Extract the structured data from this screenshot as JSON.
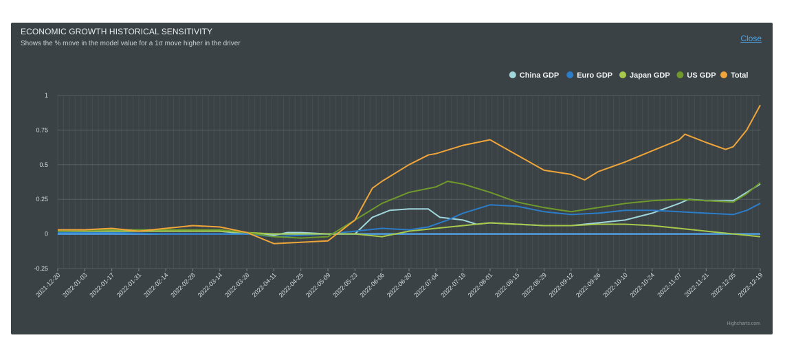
{
  "header": {
    "title": "ECONOMIC GROWTH HISTORICAL SENSITIVITY",
    "subtitle": "Shows the % move in the model value for a 1σ move higher in the driver",
    "close_label": "Close"
  },
  "credit": "Highcharts.com",
  "colors": {
    "panel_bg": "#3b4245",
    "grid": "#4a5357",
    "china": "#9fd6dc",
    "euro": "#2b7cc9",
    "japan": "#a7c94b",
    "us": "#6f9a2b",
    "total": "#f0a53a"
  },
  "chart_data": {
    "type": "line",
    "title": "ECONOMIC GROWTH HISTORICAL SENSITIVITY",
    "subtitle": "Shows the % move in the model value for a 1σ move higher in the driver",
    "xlabel": "",
    "ylabel": "",
    "ylim": [
      -0.25,
      1
    ],
    "yticks": [
      -0.25,
      0,
      0.25,
      0.5,
      0.75,
      1
    ],
    "ytick_labels": [
      "-0.25",
      "0",
      "0.25",
      "0.5",
      "0.75",
      "1"
    ],
    "x_start": "2021-12-20",
    "x_end": "2022-12-19",
    "x_tick_labels": [
      "2021-12-20",
      "2022-01-03",
      "2022-01-17",
      "2022-01-31",
      "2022-02-14",
      "2022-02-28",
      "2022-03-14",
      "2022-03-28",
      "2022-04-11",
      "2022-04-25",
      "2022-05-09",
      "2022-05-23",
      "2022-06-06",
      "2022-06-20",
      "2022-07-04",
      "2022-07-18",
      "2022-08-01",
      "2022-08-15",
      "2022-08-29",
      "2022-09-12",
      "2022-09-26",
      "2022-10-10",
      "2022-10-24",
      "2022-11-07",
      "2022-11-21",
      "2022-12-05",
      "2022-12-19"
    ],
    "grid": true,
    "legend_position": "top-right",
    "series": [
      {
        "name": "China GDP",
        "color": "#9fd6dc",
        "points": [
          [
            "2021-12-20",
            0.02
          ],
          [
            "2022-01-17",
            0.02
          ],
          [
            "2022-02-14",
            0.02
          ],
          [
            "2022-03-14",
            0.02
          ],
          [
            "2022-03-28",
            0.0
          ],
          [
            "2022-04-11",
            -0.01
          ],
          [
            "2022-04-18",
            0.01
          ],
          [
            "2022-04-25",
            0.01
          ],
          [
            "2022-05-09",
            0.0
          ],
          [
            "2022-05-23",
            0.0
          ],
          [
            "2022-06-01",
            0.12
          ],
          [
            "2022-06-10",
            0.17
          ],
          [
            "2022-06-20",
            0.18
          ],
          [
            "2022-06-30",
            0.18
          ],
          [
            "2022-07-06",
            0.12
          ],
          [
            "2022-07-18",
            0.1
          ],
          [
            "2022-07-25",
            0.07
          ],
          [
            "2022-08-01",
            0.08
          ],
          [
            "2022-08-15",
            0.07
          ],
          [
            "2022-08-29",
            0.06
          ],
          [
            "2022-09-12",
            0.06
          ],
          [
            "2022-09-26",
            0.08
          ],
          [
            "2022-10-10",
            0.1
          ],
          [
            "2022-10-24",
            0.15
          ],
          [
            "2022-11-07",
            0.22
          ],
          [
            "2022-11-12",
            0.25
          ],
          [
            "2022-11-21",
            0.24
          ],
          [
            "2022-12-05",
            0.24
          ],
          [
            "2022-12-12",
            0.3
          ],
          [
            "2022-12-19",
            0.36
          ]
        ]
      },
      {
        "name": "Euro GDP",
        "color": "#2b7cc9",
        "points": [
          [
            "2021-12-20",
            0.01
          ],
          [
            "2022-01-17",
            0.01
          ],
          [
            "2022-02-14",
            0.0
          ],
          [
            "2022-03-14",
            0.0
          ],
          [
            "2022-03-28",
            0.0
          ],
          [
            "2022-04-11",
            -0.02
          ],
          [
            "2022-04-25",
            -0.01
          ],
          [
            "2022-05-09",
            0.0
          ],
          [
            "2022-05-23",
            0.02
          ],
          [
            "2022-06-06",
            0.04
          ],
          [
            "2022-06-20",
            0.03
          ],
          [
            "2022-06-30",
            0.05
          ],
          [
            "2022-07-10",
            0.1
          ],
          [
            "2022-07-18",
            0.15
          ],
          [
            "2022-08-01",
            0.21
          ],
          [
            "2022-08-15",
            0.2
          ],
          [
            "2022-08-29",
            0.16
          ],
          [
            "2022-09-12",
            0.14
          ],
          [
            "2022-09-26",
            0.15
          ],
          [
            "2022-10-10",
            0.17
          ],
          [
            "2022-10-24",
            0.17
          ],
          [
            "2022-11-07",
            0.16
          ],
          [
            "2022-11-21",
            0.15
          ],
          [
            "2022-12-05",
            0.14
          ],
          [
            "2022-12-12",
            0.17
          ],
          [
            "2022-12-19",
            0.22
          ]
        ]
      },
      {
        "name": "Japan GDP",
        "color": "#a7c94b",
        "points": [
          [
            "2021-12-20",
            0.02
          ],
          [
            "2022-01-17",
            0.02
          ],
          [
            "2022-02-14",
            0.02
          ],
          [
            "2022-03-14",
            0.02
          ],
          [
            "2022-03-28",
            0.01
          ],
          [
            "2022-04-11",
            0.0
          ],
          [
            "2022-04-25",
            0.0
          ],
          [
            "2022-05-09",
            0.0
          ],
          [
            "2022-05-23",
            0.0
          ],
          [
            "2022-06-06",
            -0.02
          ],
          [
            "2022-06-20",
            0.02
          ],
          [
            "2022-07-04",
            0.04
          ],
          [
            "2022-07-18",
            0.06
          ],
          [
            "2022-08-01",
            0.08
          ],
          [
            "2022-08-15",
            0.07
          ],
          [
            "2022-08-29",
            0.06
          ],
          [
            "2022-09-12",
            0.06
          ],
          [
            "2022-09-26",
            0.07
          ],
          [
            "2022-10-10",
            0.07
          ],
          [
            "2022-10-24",
            0.06
          ],
          [
            "2022-11-07",
            0.04
          ],
          [
            "2022-11-21",
            0.02
          ],
          [
            "2022-12-05",
            0.0
          ],
          [
            "2022-12-19",
            -0.02
          ]
        ]
      },
      {
        "name": "US GDP",
        "color": "#6f9a2b",
        "points": [
          [
            "2021-12-20",
            0.02
          ],
          [
            "2022-01-17",
            0.03
          ],
          [
            "2022-02-14",
            0.03
          ],
          [
            "2022-03-14",
            0.03
          ],
          [
            "2022-03-28",
            0.01
          ],
          [
            "2022-04-11",
            -0.02
          ],
          [
            "2022-04-25",
            -0.03
          ],
          [
            "2022-05-09",
            -0.02
          ],
          [
            "2022-05-23",
            0.1
          ],
          [
            "2022-06-06",
            0.22
          ],
          [
            "2022-06-20",
            0.3
          ],
          [
            "2022-07-04",
            0.34
          ],
          [
            "2022-07-10",
            0.38
          ],
          [
            "2022-07-18",
            0.36
          ],
          [
            "2022-08-01",
            0.3
          ],
          [
            "2022-08-15",
            0.23
          ],
          [
            "2022-08-29",
            0.19
          ],
          [
            "2022-09-12",
            0.16
          ],
          [
            "2022-09-26",
            0.19
          ],
          [
            "2022-10-10",
            0.22
          ],
          [
            "2022-10-24",
            0.24
          ],
          [
            "2022-11-07",
            0.25
          ],
          [
            "2022-11-21",
            0.24
          ],
          [
            "2022-12-05",
            0.23
          ],
          [
            "2022-12-12",
            0.29
          ],
          [
            "2022-12-19",
            0.37
          ]
        ]
      },
      {
        "name": "Total",
        "color": "#f0a53a",
        "points": [
          [
            "2021-12-20",
            0.03
          ],
          [
            "2022-01-03",
            0.03
          ],
          [
            "2022-01-17",
            0.04
          ],
          [
            "2022-01-31",
            0.02
          ],
          [
            "2022-02-14",
            0.04
          ],
          [
            "2022-02-28",
            0.06
          ],
          [
            "2022-03-14",
            0.05
          ],
          [
            "2022-03-28",
            0.01
          ],
          [
            "2022-04-11",
            -0.07
          ],
          [
            "2022-04-25",
            -0.06
          ],
          [
            "2022-05-09",
            -0.05
          ],
          [
            "2022-05-23",
            0.1
          ],
          [
            "2022-06-01",
            0.33
          ],
          [
            "2022-06-06",
            0.38
          ],
          [
            "2022-06-20",
            0.5
          ],
          [
            "2022-06-30",
            0.57
          ],
          [
            "2022-07-04",
            0.58
          ],
          [
            "2022-07-18",
            0.64
          ],
          [
            "2022-08-01",
            0.68
          ],
          [
            "2022-08-15",
            0.57
          ],
          [
            "2022-08-29",
            0.46
          ],
          [
            "2022-09-12",
            0.43
          ],
          [
            "2022-09-19",
            0.39
          ],
          [
            "2022-09-26",
            0.45
          ],
          [
            "2022-10-10",
            0.52
          ],
          [
            "2022-10-24",
            0.6
          ],
          [
            "2022-11-07",
            0.68
          ],
          [
            "2022-11-10",
            0.72
          ],
          [
            "2022-11-21",
            0.66
          ],
          [
            "2022-12-01",
            0.61
          ],
          [
            "2022-12-05",
            0.63
          ],
          [
            "2022-12-12",
            0.75
          ],
          [
            "2022-12-19",
            0.93
          ]
        ]
      }
    ]
  }
}
